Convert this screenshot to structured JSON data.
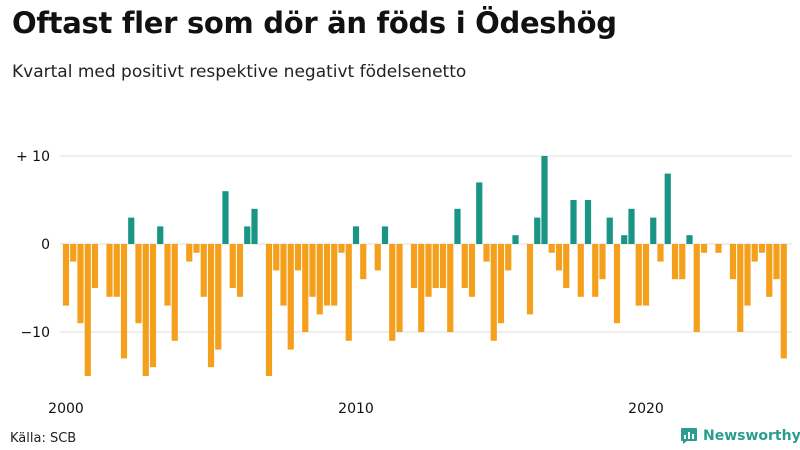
{
  "header": {
    "title": "Oftast fler som dör än föds i Ödeshög",
    "subtitle": "Kvartal med positivt respektive negativt födelsenetto"
  },
  "footer": {
    "source": "Källa: SCB",
    "brand": "Newsworthy"
  },
  "colors": {
    "positive": "#1a9485",
    "negative": "#f4a01c",
    "grid": "#dddddd",
    "text": "#111111",
    "brand": "#2a9d8f"
  },
  "chart_data": {
    "type": "bar",
    "title": "Oftast fler som dör än föds i Ödeshög",
    "subtitle": "Kvartal med positivt respektive negativt födelsenetto",
    "x_ticks": [
      "2000",
      "2010",
      "2020"
    ],
    "y_ticks": [
      {
        "value": 10,
        "label": "+ 10"
      },
      {
        "value": 0,
        "label": "0"
      },
      {
        "value": -10,
        "label": "−10"
      }
    ],
    "ylim": [
      -15,
      10
    ],
    "grid": true,
    "start": "2000 Q1",
    "values": [
      -7,
      -2,
      -9,
      -15,
      -5,
      0,
      -6,
      -6,
      -13,
      3,
      -9,
      -15,
      -14,
      2,
      -7,
      -11,
      0,
      -2,
      -1,
      -6,
      -14,
      -12,
      6,
      -5,
      -6,
      2,
      4,
      0,
      -15,
      -3,
      -7,
      -12,
      -3,
      -10,
      -6,
      -8,
      -7,
      -7,
      -1,
      -11,
      2,
      -4,
      0,
      -3,
      2,
      -11,
      -10,
      0,
      -5,
      -10,
      -6,
      -5,
      -5,
      -10,
      4,
      -5,
      -6,
      7,
      -2,
      -11,
      -9,
      -3,
      1,
      0,
      -8,
      3,
      10,
      -1,
      -3,
      -5,
      5,
      -6,
      5,
      -6,
      -4,
      3,
      -9,
      1,
      4,
      -7,
      -7,
      3,
      -2,
      8,
      -4,
      -4,
      1,
      -10,
      -1,
      0,
      -1,
      0,
      -4,
      -10,
      -7,
      -2,
      -1,
      -6,
      -4,
      -13
    ]
  }
}
